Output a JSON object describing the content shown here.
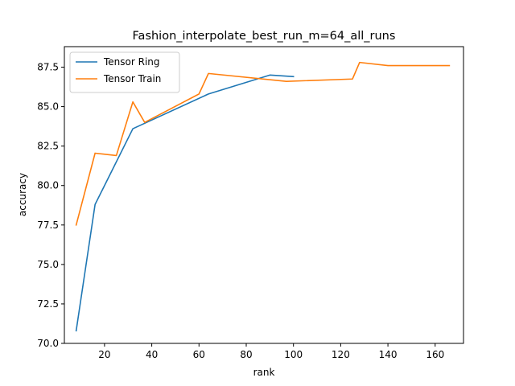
{
  "chart_data": {
    "type": "line",
    "title": "Fashion_interpolate_best_run_m=64_all_runs",
    "xlabel": "rank",
    "ylabel": "accuracy",
    "xlim": [
      3,
      172
    ],
    "ylim": [
      70.0,
      88.8
    ],
    "xticks": [
      20,
      40,
      60,
      80,
      100,
      120,
      140,
      160
    ],
    "yticks": [
      70.0,
      72.5,
      75.0,
      77.5,
      80.0,
      82.5,
      85.0,
      87.5
    ],
    "ytick_labels": [
      "70.0",
      "72.5",
      "75.0",
      "77.5",
      "80.0",
      "82.5",
      "85.0",
      "87.5"
    ],
    "grid": false,
    "legend_position": "upper-left",
    "series": [
      {
        "name": "Tensor Ring",
        "color": "#1f77b4",
        "x": [
          8,
          16,
          32,
          64,
          90,
          100
        ],
        "y": [
          70.8,
          78.8,
          83.6,
          85.8,
          87.0,
          86.9
        ]
      },
      {
        "name": "Tensor Train",
        "color": "#ff7f0e",
        "x": [
          8,
          16,
          25,
          32,
          37,
          60,
          64,
          97,
          125,
          128,
          140,
          166
        ],
        "y": [
          77.5,
          82.05,
          81.9,
          85.3,
          84.0,
          85.8,
          87.1,
          86.6,
          86.75,
          87.8,
          87.6,
          87.6
        ]
      }
    ]
  }
}
